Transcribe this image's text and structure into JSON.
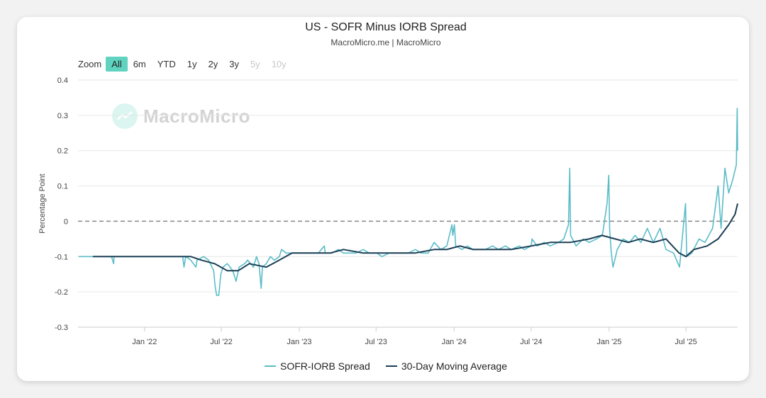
{
  "header": {
    "title": "US - SOFR Minus IORB Spread",
    "subtitle": "MacroMicro.me | MacroMicro"
  },
  "zoom": {
    "label": "Zoom",
    "options": [
      {
        "label": "All",
        "state": "active"
      },
      {
        "label": "6m",
        "state": "normal"
      },
      {
        "label": "YTD",
        "state": "normal"
      },
      {
        "label": "1y",
        "state": "normal"
      },
      {
        "label": "2y",
        "state": "normal"
      },
      {
        "label": "3y",
        "state": "normal"
      },
      {
        "label": "5y",
        "state": "disabled"
      },
      {
        "label": "10y",
        "state": "disabled"
      }
    ]
  },
  "watermark": {
    "text": "MacroMicro",
    "icon": "chart-logo-icon"
  },
  "colors": {
    "spread": "#5bbcc8",
    "moving_average": "#1c3f55",
    "zero_line": "#888888",
    "grid": "#e6e6e6",
    "active_zoom": "#5fd3c0"
  },
  "chart_data": {
    "type": "line",
    "title": "US - SOFR Minus IORB Spread",
    "subtitle": "MacroMicro.me | MacroMicro",
    "ylabel": "Percentage Point",
    "xlabel": "",
    "ylim": [
      -0.3,
      0.4
    ],
    "yticks": [
      -0.3,
      -0.2,
      -0.1,
      0,
      0.1,
      0.2,
      0.3,
      0.4
    ],
    "ytick_labels": [
      "-0.3",
      "-0.2",
      "-0.1",
      "0",
      "0.1",
      "0.2",
      "0.3",
      "0.4"
    ],
    "xlim": [
      "2021-07-28",
      "2025-10-31"
    ],
    "xticks": [
      {
        "date": "2022-01-01",
        "label": "Jan '22"
      },
      {
        "date": "2022-07-01",
        "label": "Jul '22"
      },
      {
        "date": "2023-01-01",
        "label": "Jan '23"
      },
      {
        "date": "2023-07-01",
        "label": "Jul '23"
      },
      {
        "date": "2024-01-01",
        "label": "Jan '24"
      },
      {
        "date": "2024-07-01",
        "label": "Jul '24"
      },
      {
        "date": "2025-01-01",
        "label": "Jan '25"
      },
      {
        "date": "2025-07-01",
        "label": "Jul '25"
      }
    ],
    "reference_line": {
      "y": 0,
      "style": "dashed"
    },
    "grid": true,
    "legend_position": "bottom-center",
    "series": [
      {
        "name": "SOFR-IORB Spread",
        "color": "#5bbcc8",
        "points": [
          [
            "2021-07-29",
            -0.1
          ],
          [
            "2021-09-01",
            -0.1
          ],
          [
            "2021-10-01",
            -0.1
          ],
          [
            "2021-10-15",
            -0.1
          ],
          [
            "2021-10-20",
            -0.12
          ],
          [
            "2021-10-21",
            -0.1
          ],
          [
            "2021-11-15",
            -0.1
          ],
          [
            "2021-12-01",
            -0.1
          ],
          [
            "2022-01-03",
            -0.1
          ],
          [
            "2022-02-01",
            -0.1
          ],
          [
            "2022-03-01",
            -0.1
          ],
          [
            "2022-03-17",
            -0.1
          ],
          [
            "2022-04-01",
            -0.1
          ],
          [
            "2022-04-04",
            -0.13
          ],
          [
            "2022-04-08",
            -0.1
          ],
          [
            "2022-04-20",
            -0.11
          ],
          [
            "2022-05-02",
            -0.13
          ],
          [
            "2022-05-05",
            -0.11
          ],
          [
            "2022-05-20",
            -0.1
          ],
          [
            "2022-06-01",
            -0.11
          ],
          [
            "2022-06-13",
            -0.14
          ],
          [
            "2022-06-16",
            -0.18
          ],
          [
            "2022-06-20",
            -0.21
          ],
          [
            "2022-06-25",
            -0.21
          ],
          [
            "2022-06-30",
            -0.15
          ],
          [
            "2022-07-05",
            -0.13
          ],
          [
            "2022-07-15",
            -0.12
          ],
          [
            "2022-07-28",
            -0.14
          ],
          [
            "2022-08-05",
            -0.17
          ],
          [
            "2022-08-12",
            -0.13
          ],
          [
            "2022-08-25",
            -0.12
          ],
          [
            "2022-09-01",
            -0.11
          ],
          [
            "2022-09-15",
            -0.13
          ],
          [
            "2022-09-22",
            -0.1
          ],
          [
            "2022-09-28",
            -0.12
          ],
          [
            "2022-10-03",
            -0.19
          ],
          [
            "2022-10-06",
            -0.13
          ],
          [
            "2022-10-15",
            -0.12
          ],
          [
            "2022-10-25",
            -0.1
          ],
          [
            "2022-11-03",
            -0.11
          ],
          [
            "2022-11-15",
            -0.1
          ],
          [
            "2022-11-20",
            -0.08
          ],
          [
            "2022-12-01",
            -0.09
          ],
          [
            "2022-12-15",
            -0.09
          ],
          [
            "2023-01-03",
            -0.09
          ],
          [
            "2023-02-01",
            -0.09
          ],
          [
            "2023-02-15",
            -0.09
          ],
          [
            "2023-03-01",
            -0.07
          ],
          [
            "2023-03-03",
            -0.09
          ],
          [
            "2023-03-20",
            -0.09
          ],
          [
            "2023-04-03",
            -0.08
          ],
          [
            "2023-04-15",
            -0.09
          ],
          [
            "2023-05-01",
            -0.09
          ],
          [
            "2023-05-15",
            -0.09
          ],
          [
            "2023-06-01",
            -0.08
          ],
          [
            "2023-06-15",
            -0.09
          ],
          [
            "2023-07-03",
            -0.09
          ],
          [
            "2023-07-15",
            -0.1
          ],
          [
            "2023-08-01",
            -0.09
          ],
          [
            "2023-08-15",
            -0.09
          ],
          [
            "2023-09-01",
            -0.09
          ],
          [
            "2023-09-15",
            -0.09
          ],
          [
            "2023-10-02",
            -0.08
          ],
          [
            "2023-10-15",
            -0.09
          ],
          [
            "2023-11-01",
            -0.09
          ],
          [
            "2023-11-15",
            -0.06
          ],
          [
            "2023-12-01",
            -0.08
          ],
          [
            "2023-12-15",
            -0.07
          ],
          [
            "2023-12-27",
            -0.01
          ],
          [
            "2023-12-29",
            -0.04
          ],
          [
            "2024-01-02",
            -0.01
          ],
          [
            "2024-01-05",
            -0.07
          ],
          [
            "2024-01-20",
            -0.08
          ],
          [
            "2024-02-01",
            -0.07
          ],
          [
            "2024-02-15",
            -0.08
          ],
          [
            "2024-03-01",
            -0.08
          ],
          [
            "2024-03-15",
            -0.08
          ],
          [
            "2024-04-01",
            -0.07
          ],
          [
            "2024-04-15",
            -0.08
          ],
          [
            "2024-05-01",
            -0.07
          ],
          [
            "2024-05-15",
            -0.08
          ],
          [
            "2024-06-03",
            -0.07
          ],
          [
            "2024-06-15",
            -0.08
          ],
          [
            "2024-07-01",
            -0.07
          ],
          [
            "2024-07-03",
            -0.05
          ],
          [
            "2024-07-15",
            -0.07
          ],
          [
            "2024-08-01",
            -0.06
          ],
          [
            "2024-08-15",
            -0.07
          ],
          [
            "2024-09-03",
            -0.06
          ],
          [
            "2024-09-16",
            -0.05
          ],
          [
            "2024-09-27",
            -0.01
          ],
          [
            "2024-09-30",
            0.15
          ],
          [
            "2024-10-02",
            -0.04
          ],
          [
            "2024-10-15",
            -0.07
          ],
          [
            "2024-11-01",
            -0.05
          ],
          [
            "2024-11-15",
            -0.06
          ],
          [
            "2024-12-02",
            -0.05
          ],
          [
            "2024-12-16",
            -0.04
          ],
          [
            "2024-12-27",
            0.05
          ],
          [
            "2024-12-31",
            0.13
          ],
          [
            "2025-01-02",
            -0.02
          ],
          [
            "2025-01-06",
            -0.09
          ],
          [
            "2025-01-10",
            -0.13
          ],
          [
            "2025-01-20",
            -0.08
          ],
          [
            "2025-02-03",
            -0.05
          ],
          [
            "2025-02-18",
            -0.06
          ],
          [
            "2025-03-03",
            -0.04
          ],
          [
            "2025-03-17",
            -0.06
          ],
          [
            "2025-04-01",
            -0.02
          ],
          [
            "2025-04-15",
            -0.06
          ],
          [
            "2025-05-01",
            -0.02
          ],
          [
            "2025-05-15",
            -0.08
          ],
          [
            "2025-06-02",
            -0.09
          ],
          [
            "2025-06-16",
            -0.13
          ],
          [
            "2025-06-30",
            0.05
          ],
          [
            "2025-07-03",
            -0.1
          ],
          [
            "2025-07-15",
            -0.09
          ],
          [
            "2025-08-01",
            -0.05
          ],
          [
            "2025-08-15",
            -0.06
          ],
          [
            "2025-09-02",
            -0.02
          ],
          [
            "2025-09-15",
            0.1
          ],
          [
            "2025-09-22",
            -0.02
          ],
          [
            "2025-10-01",
            0.15
          ],
          [
            "2025-10-10",
            0.08
          ],
          [
            "2025-10-20",
            0.12
          ],
          [
            "2025-10-28",
            0.16
          ],
          [
            "2025-10-30",
            0.32
          ],
          [
            "2025-10-31",
            0.2
          ]
        ]
      },
      {
        "name": "30-Day Moving Average",
        "color": "#1c3f55",
        "points": [
          [
            "2021-09-01",
            -0.1
          ],
          [
            "2021-12-01",
            -0.1
          ],
          [
            "2022-03-01",
            -0.1
          ],
          [
            "2022-04-20",
            -0.1
          ],
          [
            "2022-05-15",
            -0.11
          ],
          [
            "2022-06-15",
            -0.12
          ],
          [
            "2022-07-15",
            -0.14
          ],
          [
            "2022-08-10",
            -0.14
          ],
          [
            "2022-09-05",
            -0.12
          ],
          [
            "2022-10-15",
            -0.13
          ],
          [
            "2022-11-15",
            -0.11
          ],
          [
            "2022-12-15",
            -0.09
          ],
          [
            "2023-02-01",
            -0.09
          ],
          [
            "2023-03-15",
            -0.09
          ],
          [
            "2023-04-15",
            -0.08
          ],
          [
            "2023-06-01",
            -0.09
          ],
          [
            "2023-08-01",
            -0.09
          ],
          [
            "2023-10-01",
            -0.09
          ],
          [
            "2023-11-15",
            -0.08
          ],
          [
            "2023-12-15",
            -0.08
          ],
          [
            "2024-01-15",
            -0.07
          ],
          [
            "2024-02-15",
            -0.08
          ],
          [
            "2024-04-01",
            -0.08
          ],
          [
            "2024-05-15",
            -0.08
          ],
          [
            "2024-07-01",
            -0.07
          ],
          [
            "2024-08-15",
            -0.06
          ],
          [
            "2024-10-01",
            -0.06
          ],
          [
            "2024-11-15",
            -0.05
          ],
          [
            "2024-12-15",
            -0.04
          ],
          [
            "2025-01-15",
            -0.05
          ],
          [
            "2025-02-15",
            -0.06
          ],
          [
            "2025-03-15",
            -0.05
          ],
          [
            "2025-04-15",
            -0.06
          ],
          [
            "2025-05-15",
            -0.05
          ],
          [
            "2025-06-15",
            -0.09
          ],
          [
            "2025-07-01",
            -0.1
          ],
          [
            "2025-07-20",
            -0.08
          ],
          [
            "2025-08-20",
            -0.07
          ],
          [
            "2025-09-15",
            -0.05
          ],
          [
            "2025-10-10",
            -0.01
          ],
          [
            "2025-10-25",
            0.02
          ],
          [
            "2025-10-31",
            0.05
          ]
        ]
      }
    ]
  }
}
